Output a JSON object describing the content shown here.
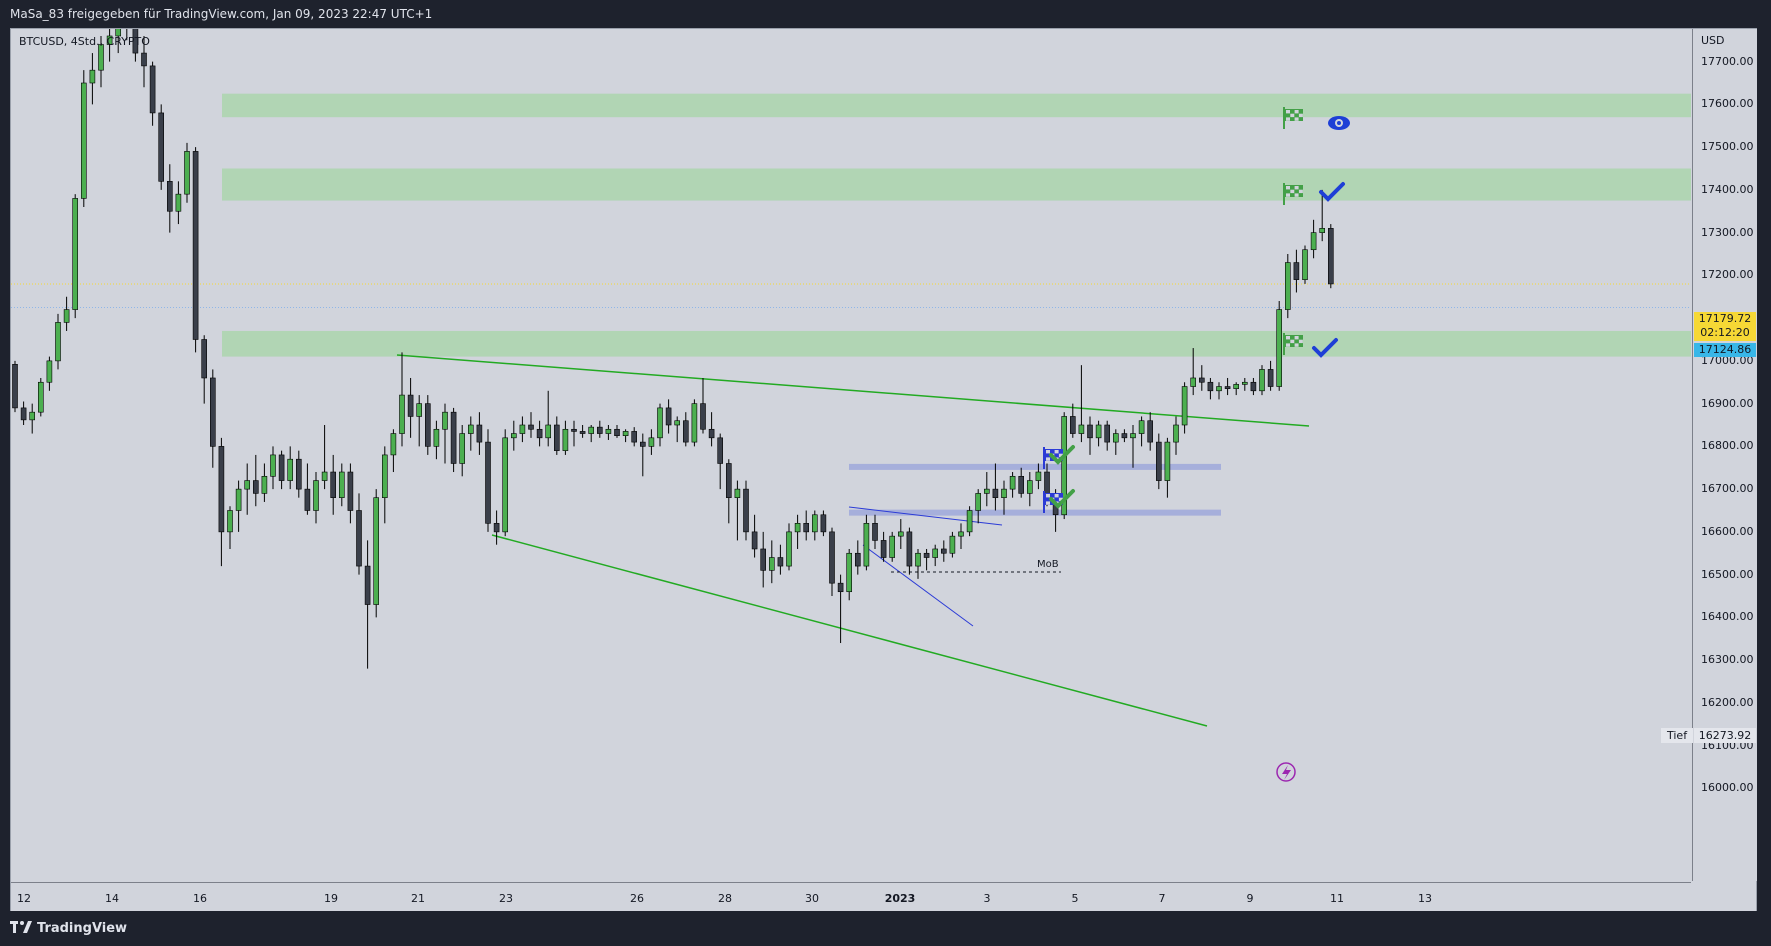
{
  "header": {
    "title": "MaSa_83 freigegeben für TradingView.com, Jan 09, 2023 22:47 UTC+1"
  },
  "footer": {
    "logo_text": "TradingView"
  },
  "chart_data": {
    "type": "candlestick",
    "symbol_legend": "BTCUSD, 4Std., CRYPTO",
    "currency": "USD",
    "ylim": [
      15950,
      18100
    ],
    "y_ticks": [
      "17700.00",
      "17600.00",
      "17500.00",
      "17400.00",
      "17300.00",
      "17200.00",
      "17100.00",
      "17000.00",
      "16900.00",
      "16800.00",
      "16700.00",
      "16600.00",
      "16500.00",
      "16400.00",
      "16300.00",
      "16200.00",
      "16100.00",
      "16000.00"
    ],
    "x_ticks": [
      {
        "label": "12",
        "bold": false
      },
      {
        "label": "14",
        "bold": false
      },
      {
        "label": "16",
        "bold": false
      },
      {
        "label": "19",
        "bold": false
      },
      {
        "label": "21",
        "bold": false
      },
      {
        "label": "23",
        "bold": false
      },
      {
        "label": "26",
        "bold": false
      },
      {
        "label": "28",
        "bold": false
      },
      {
        "label": "30",
        "bold": false
      },
      {
        "label": "2023",
        "bold": true
      },
      {
        "label": "3",
        "bold": false
      },
      {
        "label": "5",
        "bold": false
      },
      {
        "label": "7",
        "bold": false
      },
      {
        "label": "9",
        "bold": false
      },
      {
        "label": "11",
        "bold": false
      },
      {
        "label": "13",
        "bold": false
      }
    ],
    "last_price": "17179.72",
    "countdown": "02:12:20",
    "ask_price": "17124.86",
    "low_label": "Tief",
    "low_value": "16273.92",
    "annotation_mob": "MoB",
    "colors": {
      "up": "#4caf50",
      "down": "#000000",
      "zone": "#a5d6a7",
      "trend": "#22aa22",
      "blue_zone": "#9fa8da",
      "blue_line": "#2b3bd6"
    },
    "zones": [
      {
        "low": 17570,
        "high": 17625
      },
      {
        "low": 17375,
        "high": 17450
      },
      {
        "low": 17010,
        "high": 17070
      }
    ],
    "blue_levels": [
      16752,
      16645
    ],
    "candles": [
      [
        16992,
        17000,
        16880,
        16890
      ],
      [
        16890,
        16905,
        16850,
        16862
      ],
      [
        16862,
        16900,
        16830,
        16880
      ],
      [
        16880,
        16960,
        16870,
        16950
      ],
      [
        16950,
        17010,
        16930,
        17000
      ],
      [
        17000,
        17110,
        16980,
        17090
      ],
      [
        17090,
        17150,
        17070,
        17120
      ],
      [
        17120,
        17390,
        17100,
        17380
      ],
      [
        17380,
        17680,
        17360,
        17650
      ],
      [
        17650,
        17720,
        17600,
        17680
      ],
      [
        17680,
        17760,
        17640,
        17740
      ],
      [
        17740,
        17790,
        17700,
        17760
      ],
      [
        17760,
        17820,
        17720,
        17790
      ],
      [
        17790,
        17830,
        17750,
        17800
      ],
      [
        17800,
        17830,
        17700,
        17720
      ],
      [
        17720,
        17760,
        17640,
        17690
      ],
      [
        17690,
        17700,
        17550,
        17580
      ],
      [
        17580,
        17600,
        17400,
        17420
      ],
      [
        17420,
        17460,
        17300,
        17350
      ],
      [
        17350,
        17420,
        17320,
        17390
      ],
      [
        17390,
        17510,
        17370,
        17490
      ],
      [
        17490,
        17500,
        17020,
        17050
      ],
      [
        17050,
        17060,
        16900,
        16960
      ],
      [
        16960,
        16980,
        16750,
        16800
      ],
      [
        16800,
        16820,
        16520,
        16600
      ],
      [
        16600,
        16660,
        16560,
        16650
      ],
      [
        16650,
        16720,
        16600,
        16700
      ],
      [
        16700,
        16760,
        16640,
        16720
      ],
      [
        16720,
        16780,
        16660,
        16690
      ],
      [
        16690,
        16760,
        16670,
        16730
      ],
      [
        16730,
        16800,
        16700,
        16780
      ],
      [
        16780,
        16790,
        16700,
        16720
      ],
      [
        16720,
        16800,
        16700,
        16770
      ],
      [
        16770,
        16790,
        16680,
        16700
      ],
      [
        16700,
        16760,
        16640,
        16650
      ],
      [
        16650,
        16740,
        16620,
        16720
      ],
      [
        16720,
        16850,
        16700,
        16740
      ],
      [
        16740,
        16780,
        16640,
        16680
      ],
      [
        16680,
        16760,
        16660,
        16740
      ],
      [
        16740,
        16760,
        16620,
        16650
      ],
      [
        16650,
        16690,
        16500,
        16520
      ],
      [
        16520,
        16580,
        16280,
        16430
      ],
      [
        16430,
        16700,
        16400,
        16680
      ],
      [
        16680,
        16800,
        16620,
        16780
      ],
      [
        16780,
        16840,
        16740,
        16830
      ],
      [
        16830,
        17020,
        16800,
        16920
      ],
      [
        16920,
        16960,
        16820,
        16870
      ],
      [
        16870,
        16920,
        16800,
        16900
      ],
      [
        16900,
        16920,
        16780,
        16800
      ],
      [
        16800,
        16860,
        16770,
        16840
      ],
      [
        16840,
        16900,
        16760,
        16880
      ],
      [
        16880,
        16890,
        16740,
        16760
      ],
      [
        16760,
        16850,
        16730,
        16830
      ],
      [
        16830,
        16870,
        16790,
        16850
      ],
      [
        16850,
        16880,
        16780,
        16810
      ],
      [
        16810,
        16840,
        16600,
        16620
      ],
      [
        16620,
        16650,
        16570,
        16600
      ],
      [
        16600,
        16840,
        16590,
        16820
      ],
      [
        16820,
        16860,
        16790,
        16830
      ],
      [
        16830,
        16870,
        16810,
        16850
      ],
      [
        16850,
        16880,
        16820,
        16840
      ],
      [
        16840,
        16860,
        16800,
        16820
      ],
      [
        16820,
        16930,
        16800,
        16850
      ],
      [
        16850,
        16870,
        16780,
        16790
      ],
      [
        16790,
        16860,
        16780,
        16840
      ],
      [
        16840,
        16860,
        16800,
        16835
      ],
      [
        16835,
        16850,
        16820,
        16830
      ],
      [
        16830,
        16850,
        16810,
        16845
      ],
      [
        16845,
        16860,
        16820,
        16830
      ],
      [
        16830,
        16850,
        16815,
        16840
      ],
      [
        16840,
        16850,
        16820,
        16825
      ],
      [
        16825,
        16840,
        16810,
        16835
      ],
      [
        16835,
        16845,
        16800,
        16810
      ],
      [
        16810,
        16830,
        16730,
        16800
      ],
      [
        16800,
        16840,
        16780,
        16820
      ],
      [
        16820,
        16900,
        16800,
        16890
      ],
      [
        16890,
        16910,
        16830,
        16850
      ],
      [
        16850,
        16870,
        16810,
        16860
      ],
      [
        16860,
        16880,
        16800,
        16810
      ],
      [
        16810,
        16910,
        16800,
        16900
      ],
      [
        16900,
        16960,
        16830,
        16840
      ],
      [
        16840,
        16880,
        16800,
        16820
      ],
      [
        16820,
        16830,
        16700,
        16760
      ],
      [
        16760,
        16770,
        16620,
        16680
      ],
      [
        16680,
        16720,
        16580,
        16700
      ],
      [
        16700,
        16720,
        16580,
        16600
      ],
      [
        16600,
        16640,
        16540,
        16560
      ],
      [
        16560,
        16600,
        16470,
        16510
      ],
      [
        16510,
        16580,
        16480,
        16540
      ],
      [
        16540,
        16570,
        16500,
        16520
      ],
      [
        16520,
        16620,
        16510,
        16600
      ],
      [
        16600,
        16640,
        16560,
        16620
      ],
      [
        16620,
        16650,
        16580,
        16600
      ],
      [
        16600,
        16650,
        16580,
        16640
      ],
      [
        16640,
        16650,
        16590,
        16600
      ],
      [
        16600,
        16610,
        16450,
        16480
      ],
      [
        16480,
        16500,
        16340,
        16460
      ],
      [
        16460,
        16560,
        16440,
        16550
      ],
      [
        16550,
        16580,
        16500,
        16520
      ],
      [
        16520,
        16640,
        16510,
        16620
      ],
      [
        16620,
        16640,
        16560,
        16580
      ],
      [
        16580,
        16600,
        16530,
        16540
      ],
      [
        16540,
        16600,
        16530,
        16590
      ],
      [
        16590,
        16630,
        16560,
        16600
      ],
      [
        16600,
        16610,
        16500,
        16520
      ],
      [
        16520,
        16560,
        16490,
        16550
      ],
      [
        16550,
        16560,
        16510,
        16540
      ],
      [
        16540,
        16570,
        16520,
        16560
      ],
      [
        16560,
        16580,
        16530,
        16550
      ],
      [
        16550,
        16600,
        16540,
        16590
      ],
      [
        16590,
        16620,
        16560,
        16600
      ],
      [
        16600,
        16660,
        16590,
        16650
      ],
      [
        16650,
        16700,
        16620,
        16690
      ],
      [
        16690,
        16740,
        16660,
        16700
      ],
      [
        16700,
        16760,
        16650,
        16680
      ],
      [
        16680,
        16720,
        16640,
        16700
      ],
      [
        16700,
        16740,
        16680,
        16730
      ],
      [
        16730,
        16750,
        16680,
        16690
      ],
      [
        16690,
        16740,
        16660,
        16720
      ],
      [
        16720,
        16760,
        16700,
        16740
      ],
      [
        16740,
        16760,
        16660,
        16670
      ],
      [
        16670,
        16700,
        16600,
        16640
      ],
      [
        16640,
        16880,
        16630,
        16870
      ],
      [
        16870,
        16900,
        16820,
        16830
      ],
      [
        16830,
        16990,
        16810,
        16850
      ],
      [
        16850,
        16870,
        16780,
        16820
      ],
      [
        16820,
        16860,
        16800,
        16850
      ],
      [
        16850,
        16860,
        16790,
        16810
      ],
      [
        16810,
        16840,
        16780,
        16830
      ],
      [
        16830,
        16840,
        16810,
        16820
      ],
      [
        16820,
        16850,
        16750,
        16830
      ],
      [
        16830,
        16870,
        16800,
        16860
      ],
      [
        16860,
        16880,
        16790,
        16810
      ],
      [
        16810,
        16830,
        16700,
        16720
      ],
      [
        16720,
        16820,
        16680,
        16810
      ],
      [
        16810,
        16870,
        16780,
        16850
      ],
      [
        16850,
        16950,
        16830,
        16940
      ],
      [
        16940,
        17030,
        16920,
        16960
      ],
      [
        16960,
        16990,
        16930,
        16950
      ],
      [
        16950,
        16960,
        16910,
        16930
      ],
      [
        16930,
        16950,
        16910,
        16940
      ],
      [
        16940,
        16960,
        16920,
        16935
      ],
      [
        16935,
        16950,
        16920,
        16945
      ],
      [
        16945,
        16960,
        16930,
        16950
      ],
      [
        16950,
        16960,
        16920,
        16930
      ],
      [
        16930,
        16990,
        16920,
        16980
      ],
      [
        16980,
        17000,
        16930,
        16940
      ],
      [
        16940,
        17140,
        16930,
        17120
      ],
      [
        17120,
        17250,
        17100,
        17230
      ],
      [
        17230,
        17260,
        17160,
        17190
      ],
      [
        17190,
        17270,
        17180,
        17260
      ],
      [
        17260,
        17330,
        17240,
        17300
      ],
      [
        17300,
        17400,
        17280,
        17310
      ],
      [
        17310,
        17320,
        17170,
        17180
      ]
    ],
    "mob_level": 16472,
    "trend_lines": [
      {
        "a": [
          20,
          17015
        ],
        "b": [
          155,
          16840
        ]
      },
      {
        "a": [
          50,
          16570
        ],
        "b": [
          135,
          16090
        ]
      }
    ],
    "blue_lines": [
      {
        "a": [
          96,
          16640
        ],
        "b": [
          108,
          16590
        ]
      },
      {
        "a": [
          97,
          16530
        ],
        "b": [
          106,
          16340
        ]
      }
    ]
  }
}
